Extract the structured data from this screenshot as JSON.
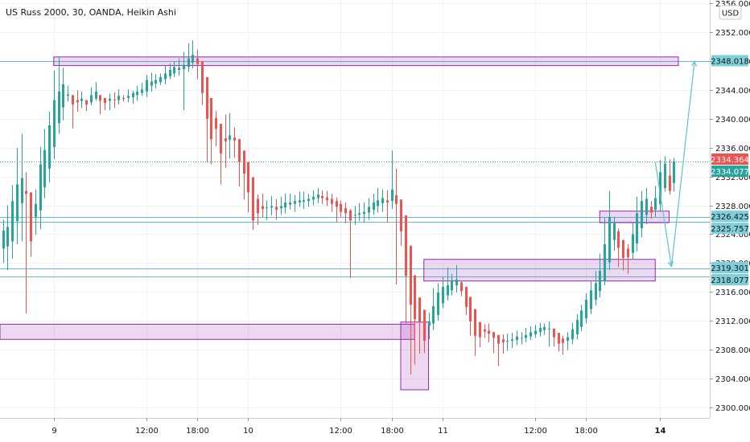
{
  "chart_data": {
    "type": "candlestick",
    "title": "US Russ 2000, 30, OANDA, Heikin Ashi",
    "currency": "USD",
    "ylim": [
      2298.5,
      2356.5
    ],
    "y_ticks": [
      2300.0,
      2304.0,
      2308.0,
      2312.0,
      2316.0,
      2320.0,
      2324.0,
      2328.0,
      2332.0,
      2336.0,
      2340.0,
      2344.0,
      2348.0,
      2352.0,
      2356.0
    ],
    "x_ticks": [
      {
        "label": "9",
        "bar": 11,
        "bold": false
      },
      {
        "label": "12:00",
        "bar": 31,
        "bold": false
      },
      {
        "label": "18:00",
        "bar": 42,
        "bold": false
      },
      {
        "label": "10",
        "bar": 53,
        "bold": false
      },
      {
        "label": "12:00",
        "bar": 73,
        "bold": false
      },
      {
        "label": "18:00",
        "bar": 84,
        "bold": false
      },
      {
        "label": "11",
        "bar": 95,
        "bold": false
      },
      {
        "label": "12:00",
        "bar": 115,
        "bold": false
      },
      {
        "label": "18:00",
        "bar": 126,
        "bold": false
      },
      {
        "label": "14",
        "bar": 142,
        "bold": true
      }
    ],
    "price_labels": [
      {
        "value": 2348.018,
        "text": "2348.018",
        "color": "#7fcfd8",
        "text_color": "#131722"
      },
      {
        "value": 2334.364,
        "text": "2334.364",
        "color": "#ef5350",
        "text_color": "#ffffff"
      },
      {
        "value": 2334.077,
        "text": "2334.077",
        "color": "#26a69a",
        "text_color": "#ffffff"
      },
      {
        "value": 2326.425,
        "text": "2326.425",
        "color": "#7fcfd8",
        "text_color": "#131722"
      },
      {
        "value": 2325.757,
        "text": "2325.757",
        "color": "#7fcfd8",
        "text_color": "#131722"
      },
      {
        "value": 2319.301,
        "text": "2319.301",
        "color": "#7fcfd8",
        "text_color": "#131722"
      },
      {
        "value": 2318.077,
        "text": "2318.077",
        "color": "#7fcfd8",
        "text_color": "#131722"
      }
    ],
    "horizontal_lines": [
      2348.018,
      2326.425,
      2325.757,
      2319.301,
      2318.077
    ],
    "dotted_lines": [
      2334.077
    ],
    "zones": [
      {
        "bar_start": 11,
        "bar_end": 146,
        "y_low": 2347.4,
        "y_high": 2348.6
      },
      {
        "bar_start": -2,
        "bar_end": 89,
        "y_low": 2309.4,
        "y_high": 2311.5
      },
      {
        "bar_start": 86,
        "bar_end": 92,
        "y_low": 2302.4,
        "y_high": 2311.8
      },
      {
        "bar_start": 91,
        "bar_end": 141,
        "y_low": 2317.5,
        "y_high": 2320.5
      },
      {
        "bar_start": 129,
        "bar_end": 144,
        "y_low": 2325.6,
        "y_high": 2327.2
      }
    ],
    "projection": [
      {
        "bar": 141,
        "value": 2334.0
      },
      {
        "bar": 144.5,
        "value": 2319.5
      },
      {
        "bar": 149.5,
        "value": 2348.0
      }
    ],
    "bar_count": 142,
    "candles": [
      {
        "o": 2322.0,
        "c": 2324.5,
        "h": 2326.0,
        "l": 2320.0
      },
      {
        "o": 2322.3,
        "c": 2325.0,
        "h": 2328.0,
        "l": 2319.0
      },
      {
        "o": 2323.0,
        "c": 2328.6,
        "h": 2330.8,
        "l": 2320.6
      },
      {
        "o": 2325.8,
        "c": 2330.9,
        "h": 2336.0,
        "l": 2322.6
      },
      {
        "o": 2328.3,
        "c": 2331.8,
        "h": 2337.9,
        "l": 2323.0
      },
      {
        "o": 2330.0,
        "c": 2329.6,
        "h": 2332.6,
        "l": 2313.0
      },
      {
        "o": 2329.8,
        "c": 2323.0,
        "h": 2329.8,
        "l": 2320.9
      },
      {
        "o": 2326.4,
        "c": 2328.2,
        "h": 2330.2,
        "l": 2323.9
      },
      {
        "o": 2327.3,
        "c": 2333.7,
        "h": 2336.1,
        "l": 2324.7
      },
      {
        "o": 2330.5,
        "c": 2335.7,
        "h": 2338.6,
        "l": 2329.0
      },
      {
        "o": 2333.1,
        "c": 2339.1,
        "h": 2341.0,
        "l": 2331.2
      },
      {
        "o": 2336.1,
        "c": 2342.6,
        "h": 2346.7,
        "l": 2334.4
      },
      {
        "o": 2339.4,
        "c": 2343.8,
        "h": 2348.6,
        "l": 2337.9
      },
      {
        "o": 2341.6,
        "c": 2344.8,
        "h": 2347.1,
        "l": 2339.8
      },
      {
        "o": 2343.2,
        "c": 2343.4,
        "h": 2344.6,
        "l": 2342.4
      },
      {
        "o": 2343.3,
        "c": 2342.0,
        "h": 2343.3,
        "l": 2338.7
      },
      {
        "o": 2342.6,
        "c": 2342.3,
        "h": 2344.0,
        "l": 2341.0
      },
      {
        "o": 2342.5,
        "c": 2342.8,
        "h": 2343.8,
        "l": 2341.5
      },
      {
        "o": 2342.6,
        "c": 2342.0,
        "h": 2342.6,
        "l": 2341.1
      },
      {
        "o": 2342.3,
        "c": 2343.3,
        "h": 2344.4,
        "l": 2341.9
      },
      {
        "o": 2342.8,
        "c": 2343.8,
        "h": 2345.1,
        "l": 2342.5
      },
      {
        "o": 2343.3,
        "c": 2342.5,
        "h": 2343.3,
        "l": 2340.6
      },
      {
        "o": 2342.9,
        "c": 2342.2,
        "h": 2342.9,
        "l": 2341.2
      },
      {
        "o": 2342.5,
        "c": 2342.8,
        "h": 2343.5,
        "l": 2341.2
      },
      {
        "o": 2342.7,
        "c": 2342.6,
        "h": 2343.7,
        "l": 2341.5
      },
      {
        "o": 2342.6,
        "c": 2343.2,
        "h": 2344.1,
        "l": 2342.0
      },
      {
        "o": 2342.9,
        "c": 2342.8,
        "h": 2343.3,
        "l": 2342.4
      },
      {
        "o": 2342.9,
        "c": 2343.2,
        "h": 2344.1,
        "l": 2342.3
      },
      {
        "o": 2343.0,
        "c": 2343.6,
        "h": 2343.9,
        "l": 2342.1
      },
      {
        "o": 2343.3,
        "c": 2343.8,
        "h": 2344.6,
        "l": 2342.5
      },
      {
        "o": 2343.6,
        "c": 2344.1,
        "h": 2345.0,
        "l": 2343.2
      },
      {
        "o": 2343.8,
        "c": 2345.4,
        "h": 2346.1,
        "l": 2343.0
      },
      {
        "o": 2344.6,
        "c": 2345.2,
        "h": 2346.4,
        "l": 2343.8
      },
      {
        "o": 2344.9,
        "c": 2345.4,
        "h": 2346.2,
        "l": 2344.2
      },
      {
        "o": 2345.1,
        "c": 2345.8,
        "h": 2346.3,
        "l": 2344.7
      },
      {
        "o": 2345.5,
        "c": 2346.3,
        "h": 2347.4,
        "l": 2344.8
      },
      {
        "o": 2345.9,
        "c": 2346.8,
        "h": 2347.7,
        "l": 2345.5
      },
      {
        "o": 2346.3,
        "c": 2347.2,
        "h": 2348.0,
        "l": 2345.8
      },
      {
        "o": 2346.8,
        "c": 2347.1,
        "h": 2348.4,
        "l": 2346.0
      },
      {
        "o": 2346.9,
        "c": 2347.5,
        "h": 2349.3,
        "l": 2341.2
      },
      {
        "o": 2347.2,
        "c": 2348.4,
        "h": 2350.5,
        "l": 2346.5
      },
      {
        "o": 2347.8,
        "c": 2348.9,
        "h": 2350.9,
        "l": 2347.0
      },
      {
        "o": 2348.4,
        "c": 2347.6,
        "h": 2349.6,
        "l": 2345.5
      },
      {
        "o": 2348.0,
        "c": 2343.6,
        "h": 2348.0,
        "l": 2341.9
      },
      {
        "o": 2345.8,
        "c": 2340.0,
        "h": 2345.8,
        "l": 2334.0
      },
      {
        "o": 2342.9,
        "c": 2337.2,
        "h": 2342.9,
        "l": 2333.7
      },
      {
        "o": 2340.1,
        "c": 2338.6,
        "h": 2341.1,
        "l": 2336.2
      },
      {
        "o": 2339.3,
        "c": 2335.2,
        "h": 2339.3,
        "l": 2330.9
      },
      {
        "o": 2337.3,
        "c": 2336.9,
        "h": 2340.6,
        "l": 2333.2
      },
      {
        "o": 2337.1,
        "c": 2337.7,
        "h": 2340.8,
        "l": 2334.5
      },
      {
        "o": 2337.4,
        "c": 2337.0,
        "h": 2338.8,
        "l": 2334.6
      },
      {
        "o": 2337.2,
        "c": 2334.0,
        "h": 2337.2,
        "l": 2330.6
      },
      {
        "o": 2335.6,
        "c": 2332.4,
        "h": 2335.6,
        "l": 2328.8
      },
      {
        "o": 2334.0,
        "c": 2329.8,
        "h": 2334.0,
        "l": 2327.0
      },
      {
        "o": 2331.9,
        "c": 2325.9,
        "h": 2331.9,
        "l": 2324.6
      },
      {
        "o": 2328.9,
        "c": 2326.9,
        "h": 2329.5,
        "l": 2325.3
      },
      {
        "o": 2327.9,
        "c": 2327.5,
        "h": 2329.6,
        "l": 2326.3
      },
      {
        "o": 2327.7,
        "c": 2327.7,
        "h": 2328.7,
        "l": 2326.0
      },
      {
        "o": 2327.7,
        "c": 2327.9,
        "h": 2329.3,
        "l": 2326.6
      },
      {
        "o": 2327.8,
        "c": 2327.4,
        "h": 2328.9,
        "l": 2326.0
      },
      {
        "o": 2327.6,
        "c": 2327.9,
        "h": 2329.2,
        "l": 2326.7
      },
      {
        "o": 2327.7,
        "c": 2328.4,
        "h": 2329.6,
        "l": 2326.9
      },
      {
        "o": 2328.1,
        "c": 2328.4,
        "h": 2329.6,
        "l": 2327.4
      },
      {
        "o": 2328.2,
        "c": 2328.6,
        "h": 2329.4,
        "l": 2327.1
      },
      {
        "o": 2328.4,
        "c": 2328.7,
        "h": 2329.9,
        "l": 2327.8
      },
      {
        "o": 2328.5,
        "c": 2328.7,
        "h": 2329.9,
        "l": 2327.5
      },
      {
        "o": 2328.6,
        "c": 2328.9,
        "h": 2329.6,
        "l": 2327.8
      },
      {
        "o": 2328.8,
        "c": 2329.2,
        "h": 2330.1,
        "l": 2328.0
      },
      {
        "o": 2329.0,
        "c": 2329.5,
        "h": 2330.4,
        "l": 2328.3
      },
      {
        "o": 2329.3,
        "c": 2329.0,
        "h": 2330.1,
        "l": 2328.2
      },
      {
        "o": 2329.1,
        "c": 2328.7,
        "h": 2330.0,
        "l": 2327.9
      },
      {
        "o": 2328.9,
        "c": 2328.2,
        "h": 2329.6,
        "l": 2327.1
      },
      {
        "o": 2328.6,
        "c": 2327.8,
        "h": 2329.1,
        "l": 2325.6
      },
      {
        "o": 2328.2,
        "c": 2327.1,
        "h": 2328.7,
        "l": 2326.4
      },
      {
        "o": 2327.6,
        "c": 2326.9,
        "h": 2328.4,
        "l": 2325.5
      },
      {
        "o": 2327.3,
        "c": 2325.9,
        "h": 2327.5,
        "l": 2317.9
      },
      {
        "o": 2326.6,
        "c": 2326.7,
        "h": 2327.9,
        "l": 2325.3
      },
      {
        "o": 2326.7,
        "c": 2326.9,
        "h": 2328.3,
        "l": 2325.8
      },
      {
        "o": 2326.8,
        "c": 2327.1,
        "h": 2328.4,
        "l": 2325.6
      },
      {
        "o": 2327.0,
        "c": 2327.8,
        "h": 2329.0,
        "l": 2326.0
      },
      {
        "o": 2327.4,
        "c": 2328.4,
        "h": 2329.6,
        "l": 2326.7
      },
      {
        "o": 2327.9,
        "c": 2328.7,
        "h": 2330.4,
        "l": 2327.0
      },
      {
        "o": 2328.3,
        "c": 2329.0,
        "h": 2330.2,
        "l": 2327.1
      },
      {
        "o": 2328.7,
        "c": 2328.4,
        "h": 2330.1,
        "l": 2325.6
      },
      {
        "o": 2328.6,
        "c": 2330.2,
        "h": 2335.6,
        "l": 2327.5
      },
      {
        "o": 2329.4,
        "c": 2328.2,
        "h": 2333.1,
        "l": 2317.0
      },
      {
        "o": 2328.8,
        "c": 2324.4,
        "h": 2328.8,
        "l": 2322.4
      },
      {
        "o": 2326.6,
        "c": 2318.2,
        "h": 2326.6,
        "l": 2311.6
      },
      {
        "o": 2322.4,
        "c": 2314.2,
        "h": 2322.4,
        "l": 2304.5
      },
      {
        "o": 2318.3,
        "c": 2312.2,
        "h": 2318.3,
        "l": 2305.9
      },
      {
        "o": 2315.2,
        "c": 2311.8,
        "h": 2315.2,
        "l": 2307.4
      },
      {
        "o": 2313.5,
        "c": 2309.2,
        "h": 2313.5,
        "l": 2307.5
      },
      {
        "o": 2311.3,
        "c": 2311.9,
        "h": 2313.1,
        "l": 2309.4
      },
      {
        "o": 2311.6,
        "c": 2314.0,
        "h": 2316.5,
        "l": 2310.7
      },
      {
        "o": 2312.8,
        "c": 2315.9,
        "h": 2317.2,
        "l": 2312.0
      },
      {
        "o": 2314.4,
        "c": 2316.7,
        "h": 2318.1,
        "l": 2313.7
      },
      {
        "o": 2315.5,
        "c": 2316.9,
        "h": 2319.4,
        "l": 2314.8
      },
      {
        "o": 2316.2,
        "c": 2317.6,
        "h": 2318.5,
        "l": 2315.5
      },
      {
        "o": 2316.9,
        "c": 2317.7,
        "h": 2319.7,
        "l": 2315.9
      },
      {
        "o": 2317.3,
        "c": 2316.1,
        "h": 2317.5,
        "l": 2315.4
      },
      {
        "o": 2316.7,
        "c": 2313.9,
        "h": 2316.7,
        "l": 2312.8
      },
      {
        "o": 2315.3,
        "c": 2311.9,
        "h": 2315.3,
        "l": 2309.9
      },
      {
        "o": 2313.6,
        "c": 2309.9,
        "h": 2313.6,
        "l": 2307.1
      },
      {
        "o": 2311.8,
        "c": 2309.7,
        "h": 2311.8,
        "l": 2308.3
      },
      {
        "o": 2310.8,
        "c": 2310.5,
        "h": 2311.5,
        "l": 2309.6
      },
      {
        "o": 2310.6,
        "c": 2310.2,
        "h": 2311.6,
        "l": 2309.0
      },
      {
        "o": 2310.4,
        "c": 2309.6,
        "h": 2310.4,
        "l": 2307.5
      },
      {
        "o": 2310.0,
        "c": 2308.8,
        "h": 2310.0,
        "l": 2305.7
      },
      {
        "o": 2309.4,
        "c": 2309.0,
        "h": 2310.1,
        "l": 2307.4
      },
      {
        "o": 2309.2,
        "c": 2309.2,
        "h": 2310.2,
        "l": 2307.8
      },
      {
        "o": 2309.2,
        "c": 2309.4,
        "h": 2310.3,
        "l": 2308.2
      },
      {
        "o": 2309.3,
        "c": 2309.8,
        "h": 2310.6,
        "l": 2308.6
      },
      {
        "o": 2309.6,
        "c": 2309.6,
        "h": 2310.4,
        "l": 2308.7
      },
      {
        "o": 2309.6,
        "c": 2310.0,
        "h": 2311.0,
        "l": 2309.0
      },
      {
        "o": 2309.8,
        "c": 2310.4,
        "h": 2311.2,
        "l": 2309.3
      },
      {
        "o": 2310.1,
        "c": 2310.6,
        "h": 2311.4,
        "l": 2309.6
      },
      {
        "o": 2310.4,
        "c": 2311.0,
        "h": 2311.7,
        "l": 2309.8
      },
      {
        "o": 2310.7,
        "c": 2311.1,
        "h": 2311.6,
        "l": 2310.0
      },
      {
        "o": 2310.9,
        "c": 2310.9,
        "h": 2311.9,
        "l": 2308.4
      },
      {
        "o": 2310.9,
        "c": 2309.7,
        "h": 2310.9,
        "l": 2308.4
      },
      {
        "o": 2310.3,
        "c": 2308.8,
        "h": 2310.3,
        "l": 2307.7
      },
      {
        "o": 2309.5,
        "c": 2308.9,
        "h": 2309.9,
        "l": 2307.3
      },
      {
        "o": 2309.2,
        "c": 2309.7,
        "h": 2310.4,
        "l": 2307.9
      },
      {
        "o": 2309.4,
        "c": 2310.8,
        "h": 2311.7,
        "l": 2308.7
      },
      {
        "o": 2310.1,
        "c": 2312.1,
        "h": 2312.9,
        "l": 2309.4
      },
      {
        "o": 2311.1,
        "c": 2313.4,
        "h": 2314.2,
        "l": 2310.5
      },
      {
        "o": 2312.3,
        "c": 2314.9,
        "h": 2315.8,
        "l": 2311.6
      },
      {
        "o": 2313.6,
        "c": 2316.2,
        "h": 2317.4,
        "l": 2312.9
      },
      {
        "o": 2314.9,
        "c": 2317.2,
        "h": 2318.9,
        "l": 2314.1
      },
      {
        "o": 2316.1,
        "c": 2318.9,
        "h": 2321.3,
        "l": 2315.2
      },
      {
        "o": 2317.5,
        "c": 2322.6,
        "h": 2326.3,
        "l": 2316.9
      },
      {
        "o": 2320.1,
        "c": 2326.4,
        "h": 2330.0,
        "l": 2319.0
      },
      {
        "o": 2323.2,
        "c": 2325.5,
        "h": 2326.4,
        "l": 2321.7
      },
      {
        "o": 2324.4,
        "c": 2322.1,
        "h": 2324.8,
        "l": 2319.4
      },
      {
        "o": 2323.2,
        "c": 2320.7,
        "h": 2323.2,
        "l": 2318.9
      },
      {
        "o": 2322.0,
        "c": 2320.8,
        "h": 2322.6,
        "l": 2318.5
      },
      {
        "o": 2321.4,
        "c": 2324.0,
        "h": 2325.5,
        "l": 2320.5
      },
      {
        "o": 2322.7,
        "c": 2326.9,
        "h": 2329.2,
        "l": 2321.6
      },
      {
        "o": 2324.8,
        "c": 2328.6,
        "h": 2330.0,
        "l": 2323.6
      },
      {
        "o": 2326.7,
        "c": 2328.9,
        "h": 2330.4,
        "l": 2325.4
      },
      {
        "o": 2327.8,
        "c": 2327.0,
        "h": 2328.6,
        "l": 2326.1
      },
      {
        "o": 2327.4,
        "c": 2329.0,
        "h": 2330.7,
        "l": 2326.4
      },
      {
        "o": 2328.2,
        "c": 2332.6,
        "h": 2334.3,
        "l": 2327.1
      },
      {
        "o": 2330.4,
        "c": 2333.8,
        "h": 2334.8,
        "l": 2329.9
      },
      {
        "o": 2332.1,
        "c": 2330.0,
        "h": 2334.4,
        "l": 2329.5
      },
      {
        "o": 2331.1,
        "c": 2334.1,
        "h": 2334.6,
        "l": 2329.9
      }
    ]
  }
}
